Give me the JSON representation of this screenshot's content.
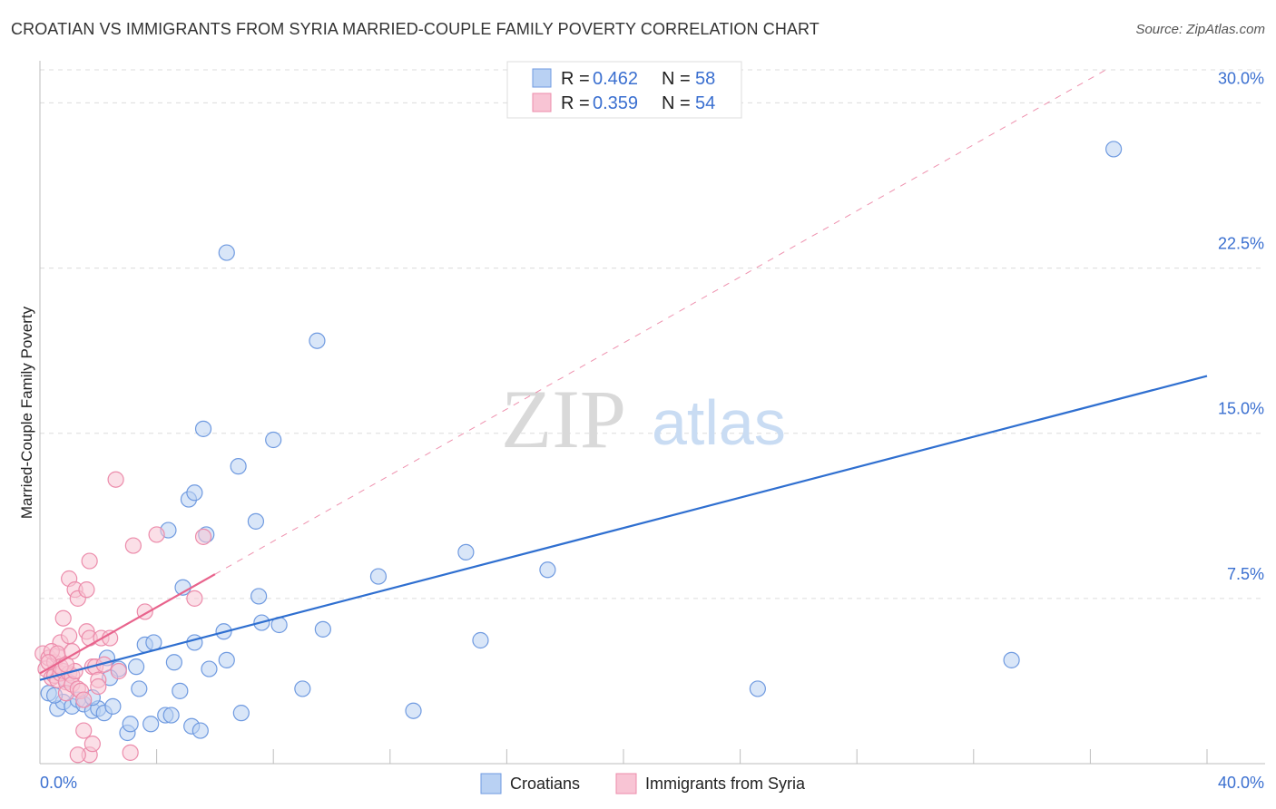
{
  "title": "CROATIAN VS IMMIGRANTS FROM SYRIA MARRIED-COUPLE FAMILY POVERTY CORRELATION CHART",
  "source": "Source: ZipAtlas.com",
  "watermark": {
    "zip": "ZIP",
    "atlas": "atlas"
  },
  "legend": {
    "r_label": "R =",
    "n_label": "N =",
    "series": [
      {
        "r": "0.462",
        "n": "58"
      },
      {
        "r": "0.359",
        "n": "54"
      }
    ]
  },
  "bottom_legend": [
    "Croatians",
    "Immigrants from Syria"
  ],
  "colors": {
    "blue_fill": "#b9d1f3",
    "blue_stroke": "#6f9ae0",
    "blue_line": "#2f6fd0",
    "pink_fill": "#f8c4d4",
    "pink_stroke": "#ec8cab",
    "pink_line": "#e8638c",
    "grid": "#dcdcdc",
    "axis_label": "#3a6fd0"
  },
  "chart_data": {
    "type": "scatter",
    "title": "CROATIAN VS IMMIGRANTS FROM SYRIA MARRIED-COUPLE FAMILY POVERTY CORRELATION CHART",
    "xlabel": "",
    "ylabel": "Married-Couple Family Poverty",
    "xlim": [
      0,
      40
    ],
    "ylim": [
      0,
      31.5
    ],
    "x_tick_labels": [
      "0.0%",
      "40.0%"
    ],
    "y_ticks": [
      7.5,
      15.0,
      22.5,
      30.0
    ],
    "y_tick_labels": [
      "7.5%",
      "15.0%",
      "22.5%",
      "30.0%"
    ],
    "grid": true,
    "series": [
      {
        "name": "Croatians",
        "r": 0.462,
        "n": 58,
        "trend": {
          "x": [
            0,
            40
          ],
          "y": [
            3.8,
            17.6
          ],
          "style": "solid"
        },
        "points": [
          [
            0.3,
            3.2
          ],
          [
            0.6,
            2.5
          ],
          [
            0.8,
            2.8
          ],
          [
            1.1,
            2.6
          ],
          [
            1.3,
            2.9
          ],
          [
            1.5,
            2.7
          ],
          [
            1.8,
            2.4
          ],
          [
            2.0,
            2.5
          ],
          [
            2.2,
            2.3
          ],
          [
            2.5,
            2.6
          ],
          [
            2.3,
            4.8
          ],
          [
            2.7,
            4.3
          ],
          [
            3.3,
            4.4
          ],
          [
            3.4,
            3.4
          ],
          [
            3.0,
            1.4
          ],
          [
            3.1,
            1.8
          ],
          [
            3.8,
            1.8
          ],
          [
            3.6,
            5.4
          ],
          [
            3.9,
            5.5
          ],
          [
            4.3,
            2.2
          ],
          [
            4.5,
            2.2
          ],
          [
            4.6,
            4.6
          ],
          [
            4.8,
            3.3
          ],
          [
            4.9,
            8.0
          ],
          [
            5.3,
            5.5
          ],
          [
            5.2,
            1.7
          ],
          [
            5.5,
            1.5
          ],
          [
            5.8,
            4.3
          ],
          [
            6.4,
            4.7
          ],
          [
            6.3,
            6.0
          ],
          [
            5.7,
            10.4
          ],
          [
            5.6,
            15.2
          ],
          [
            5.1,
            12.0
          ],
          [
            5.3,
            12.3
          ],
          [
            4.4,
            10.6
          ],
          [
            6.8,
            13.5
          ],
          [
            7.4,
            11.0
          ],
          [
            7.5,
            7.6
          ],
          [
            7.6,
            6.4
          ],
          [
            8.2,
            6.3
          ],
          [
            6.9,
            2.3
          ],
          [
            6.4,
            23.2
          ],
          [
            8.0,
            14.7
          ],
          [
            9.5,
            19.2
          ],
          [
            9.7,
            6.1
          ],
          [
            9.0,
            3.4
          ],
          [
            11.6,
            8.5
          ],
          [
            12.8,
            2.4
          ],
          [
            14.6,
            9.6
          ],
          [
            15.1,
            5.6
          ],
          [
            17.4,
            8.8
          ],
          [
            24.6,
            3.4
          ],
          [
            33.3,
            4.7
          ],
          [
            36.8,
            27.9
          ],
          [
            0.9,
            3.8
          ],
          [
            1.8,
            3.0
          ],
          [
            2.4,
            3.9
          ],
          [
            0.5,
            3.1
          ]
        ]
      },
      {
        "name": "Immigrants from Syria",
        "r": 0.359,
        "n": 54,
        "trend": {
          "x": [
            0,
            6.0
          ],
          "y": [
            4.1,
            8.6
          ],
          "style": "solid"
        },
        "trend_extended": {
          "x": [
            0,
            40
          ],
          "y": [
            4.1,
            34.1
          ],
          "style": "dashed"
        },
        "points": [
          [
            0.1,
            5.0
          ],
          [
            0.2,
            4.3
          ],
          [
            0.3,
            4.8
          ],
          [
            0.4,
            3.9
          ],
          [
            0.5,
            4.6
          ],
          [
            0.5,
            4.0
          ],
          [
            0.6,
            4.9
          ],
          [
            0.6,
            3.8
          ],
          [
            0.7,
            4.1
          ],
          [
            0.7,
            5.5
          ],
          [
            0.8,
            4.2
          ],
          [
            0.8,
            6.6
          ],
          [
            0.9,
            3.7
          ],
          [
            0.9,
            3.2
          ],
          [
            1.0,
            4.1
          ],
          [
            1.0,
            5.8
          ],
          [
            1.1,
            4.0
          ],
          [
            1.1,
            3.6
          ],
          [
            1.2,
            4.2
          ],
          [
            1.3,
            3.4
          ],
          [
            1.4,
            3.3
          ],
          [
            1.5,
            2.9
          ],
          [
            1.6,
            6.0
          ],
          [
            1.7,
            5.7
          ],
          [
            1.8,
            4.4
          ],
          [
            1.9,
            4.4
          ],
          [
            2.0,
            3.8
          ],
          [
            2.1,
            5.7
          ],
          [
            1.0,
            8.4
          ],
          [
            1.2,
            7.9
          ],
          [
            1.3,
            7.5
          ],
          [
            1.6,
            7.9
          ],
          [
            1.7,
            9.2
          ],
          [
            1.5,
            1.5
          ],
          [
            1.7,
            0.4
          ],
          [
            1.3,
            0.4
          ],
          [
            1.8,
            0.9
          ],
          [
            2.6,
            12.9
          ],
          [
            3.2,
            9.9
          ],
          [
            3.6,
            6.9
          ],
          [
            4.0,
            10.4
          ],
          [
            3.1,
            0.5
          ],
          [
            5.6,
            10.3
          ],
          [
            5.3,
            7.5
          ],
          [
            2.7,
            4.2
          ],
          [
            2.2,
            4.5
          ],
          [
            0.4,
            5.1
          ],
          [
            0.6,
            5.0
          ],
          [
            0.7,
            4.4
          ],
          [
            0.9,
            4.5
          ],
          [
            1.1,
            5.1
          ],
          [
            0.3,
            4.6
          ],
          [
            2.4,
            5.7
          ],
          [
            2.0,
            3.5
          ]
        ]
      }
    ]
  }
}
